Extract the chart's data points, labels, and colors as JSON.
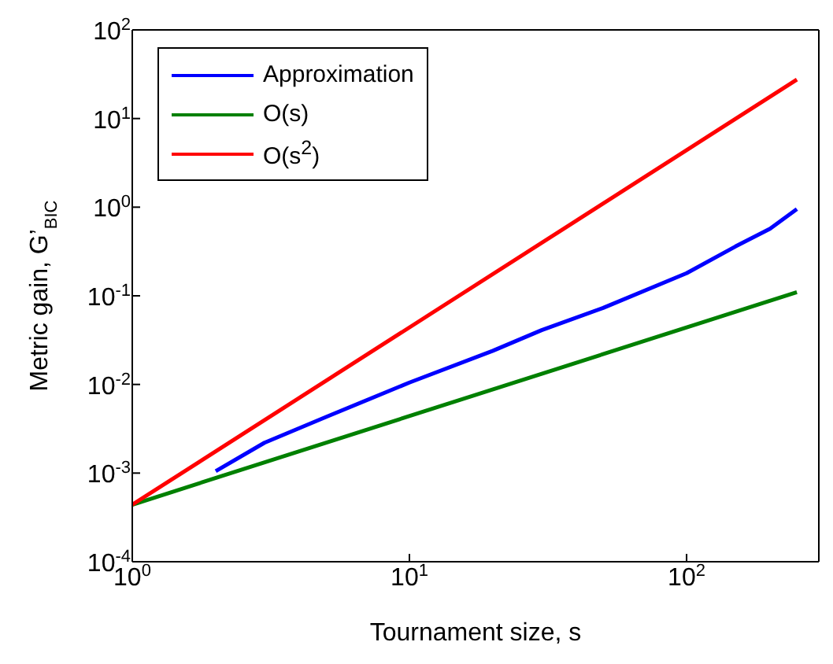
{
  "chart_data": {
    "type": "line",
    "xlabel": "Tournament size, s",
    "ylabel": "Metric gain, G’$_{BIC}$",
    "log": "xy",
    "legend": "top left",
    "marker": "none",
    "line_style": "solid",
    "xlim": [
      1,
      300
    ],
    "xticks": [
      {
        "value": 1,
        "label": "10$^{0}$"
      },
      {
        "value": 10,
        "label": "10$^{1}$"
      },
      {
        "value": 100,
        "label": "10$^{2}$"
      }
    ],
    "ylim": [
      0.0001,
      100
    ],
    "yticks": [
      {
        "value": 0.0001,
        "label": "10$^{-4}$"
      },
      {
        "value": 0.001,
        "label": "10$^{-3}$"
      },
      {
        "value": 0.01,
        "label": "10$^{-2}$"
      },
      {
        "value": 0.1,
        "label": "10$^{-1}$"
      },
      {
        "value": 1,
        "label": "10$^{0}$"
      },
      {
        "value": 10,
        "label": "10$^{1}$"
      },
      {
        "value": 100,
        "label": "10$^{2}$"
      }
    ],
    "series": [
      {
        "name": "Approximation",
        "color": "#0000ff",
        "x": [
          2,
          3,
          5,
          10,
          20,
          30,
          50,
          100,
          150,
          200,
          250
        ],
        "values": [
          0.00105,
          0.0022,
          0.0043,
          0.0105,
          0.024,
          0.041,
          0.073,
          0.18,
          0.36,
          0.57,
          0.95
        ]
      },
      {
        "name": "O(s)",
        "color": "#008000",
        "x": [
          1,
          250
        ],
        "values": [
          0.00044,
          0.11
        ]
      },
      {
        "name": "O(s$^{2}$)",
        "color": "#ff0000",
        "x": [
          1,
          250
        ],
        "values": [
          0.00044,
          27.5
        ]
      }
    ]
  }
}
